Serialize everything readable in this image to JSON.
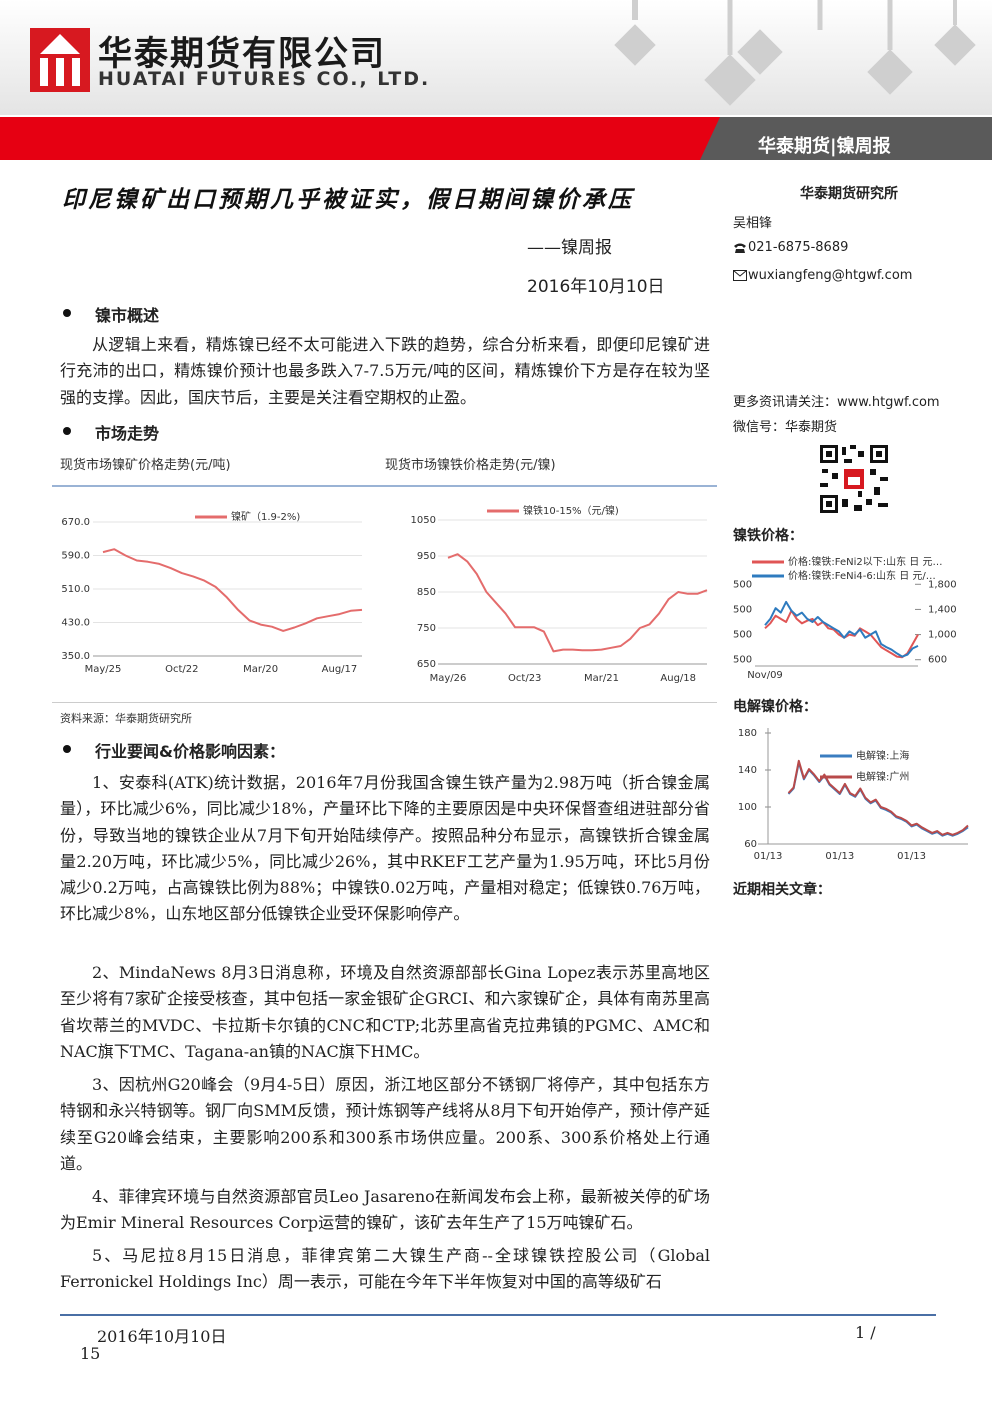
{
  "header": {
    "company_cn": "华泰期货有限公司",
    "company_en": "HUATAI FUTURES CO., LTD.",
    "report_tag": "华泰期货|镍周报"
  },
  "title": "印尼镍矿出口预期几乎被证实，假日期间镍价承压",
  "series_name": "——镍周报",
  "date": "2016年10月10日",
  "sections": [
    {
      "heading": "镍市概述",
      "paragraphs": [
        "从逻辑上来看，精炼镍已经不太可能进入下跌的趋势，综合分析来看，即便印尼镍矿进行充沛的出口，精炼镍价预计也最多跌入7-7.5万元/吨的区间，精炼镍价下方是存在较为坚强的支撑。因此，国庆节后，主要是关注看空期权的止盈。"
      ]
    },
    {
      "heading": "市场走势"
    },
    {
      "heading": "行业要闻&价格影响因素：",
      "paragraphs": [
        "1、安泰科(ATK)统计数据，2016年7月份我国含镍生铁产量为2.98万吨（折合镍金属量），环比减少6%，同比减少18%，产量环比下降的主要原因是中央环保督查组进驻部分省份，导致当地的镍铁企业从7月下旬开始陆续停产。按照品种分布显示，高镍铁折合镍金属量2.20万吨，环比减少5%，同比减少26%，其中RKEF工艺产量为1.95万吨，环比5月份减少0.2万吨，占高镍铁比例为88%；中镍铁0.02万吨，产量相对稳定；低镍铁0.76万吨，环比减少8%，山东地区部分低镍铁企业受环保影响停产。",
        "2、MindaNews 8月3日消息称，环境及自然资源部部长Gina Lopez表示苏里高地区至少将有7家矿企接受核查，其中包括一家金银矿企GRCI、和六家镍矿企，具体有南苏里高省坎蒂兰的MVDC、卡拉斯卡尔镇的CNC和CTP;北苏里高省克拉弗镇的PGMC、AMC和NAC旗下TMC、Tagana-an镇的NAC旗下HMC。",
        "3、因杭州G20峰会（9月4-5日）原因，浙江地区部分不锈钢厂将停产，其中包括东方特钢和永兴特钢等。钢厂向SMM反馈，预计炼钢等产线将从8月下旬开始停产，预计停产延续至G20峰会结束，主要影响200系和300系市场供应量。200系、300系价格处上行通道。",
        "4、菲律宾环境与自然资源部官员Leo Jasareno在新闻发布会上称，最新被关停的矿场为Emir Mineral Resources Corp运营的镍矿，该矿去年生产了15万吨镍矿石。",
        "5、马尼拉8月15日消息，菲律宾第二大镍生产商--全球镍铁控股公司（Global Ferronickel Holdings Inc）周一表示，可能在今年下半年恢复对中国的高等级矿石"
      ]
    }
  ],
  "source": "资料来源：华泰期货研究所",
  "sidebar": {
    "institute": "华泰期货研究所",
    "analyst": "吴相锋",
    "phone": "021-6875-8689",
    "email": "wuxiangfeng@htgwf.com",
    "more": "更多资讯请关注：www.htgwf.com",
    "wechat": "微信号：华泰期货",
    "related": "近期相关文章："
  },
  "chart_data": [
    {
      "type": "line",
      "title": "现货市场镍矿价格走势(元/吨)",
      "grid": true,
      "categories": [
        "May/25",
        null,
        null,
        null,
        null,
        null,
        null,
        "Oct/22",
        null,
        null,
        null,
        null,
        null,
        null,
        "Mar/20",
        null,
        null,
        null,
        null,
        null,
        null,
        "Aug/17",
        null,
        null
      ],
      "series": [
        {
          "name": "镍矿（1.9-2%)",
          "color": "#e46c6c",
          "values": [
            598,
            605,
            590,
            578,
            575,
            570,
            560,
            548,
            540,
            530,
            515,
            490,
            460,
            435,
            425,
            420,
            410,
            418,
            428,
            440,
            445,
            450,
            458,
            460
          ]
        }
      ],
      "ylim": [
        350,
        670
      ],
      "yticks": [
        {
          "value": 350,
          "label": "350.0"
        },
        {
          "value": 430,
          "label": "430.0"
        },
        {
          "value": 510,
          "label": "510.0"
        },
        {
          "value": 590,
          "label": "590.0"
        },
        {
          "value": 670,
          "label": "670.0"
        }
      ]
    },
    {
      "type": "line",
      "title": "现货市场镍铁价格走势(元/镍)",
      "grid": true,
      "categories": [
        "May/26",
        null,
        null,
        null,
        null,
        null,
        null,
        null,
        "Oct/23",
        null,
        null,
        null,
        null,
        null,
        null,
        null,
        "Mar/21",
        null,
        null,
        null,
        null,
        null,
        null,
        null,
        "Aug/18",
        null,
        null,
        null
      ],
      "series": [
        {
          "name": "镍铁10-15%（元/镍)",
          "color": "#e46c6c",
          "values": [
            945,
            955,
            935,
            900,
            850,
            820,
            790,
            752,
            752,
            752,
            740,
            685,
            690,
            690,
            688,
            688,
            690,
            695,
            700,
            720,
            750,
            760,
            790,
            830,
            850,
            845,
            845,
            855
          ]
        }
      ],
      "ylim": [
        650,
        1050
      ],
      "yticks": [
        650,
        750,
        850,
        950,
        1050
      ]
    },
    {
      "type": "line",
      "title": "镍铁价格：",
      "grid": false,
      "categories": [
        "Nov/09",
        null,
        null,
        null,
        null,
        null,
        null,
        null,
        null,
        null,
        null,
        null,
        null,
        null,
        null,
        null,
        null,
        null,
        null,
        null,
        null,
        null,
        null,
        null,
        null,
        null,
        null,
        null,
        null,
        null
      ],
      "series": [
        {
          "name": "价格:镍铁:FeNi2以下:山东 日 元…",
          "color": "#e05555",
          "values": [
            1100,
            1180,
            1300,
            1250,
            1200,
            1380,
            1250,
            1180,
            1220,
            1250,
            1150,
            1200,
            1100,
            1080,
            1000,
            950,
            1000,
            980,
            1100,
            1050,
            1000,
            900,
            800,
            750,
            700,
            650,
            640,
            700,
            850,
            1000
          ]
        },
        {
          "name": "价格:镍铁:FeNi4-6:山东 日 元/…",
          "color": "#2e7bbf",
          "values": [
            1150,
            1250,
            1420,
            1350,
            1520,
            1380,
            1300,
            1350,
            1250,
            1200,
            1280,
            1200,
            1150,
            1100,
            1050,
            950,
            1050,
            1000,
            1080,
            950,
            1000,
            1050,
            850,
            800,
            760,
            700,
            650,
            680,
            780,
            820
          ]
        }
      ],
      "ylim": [
        500,
        1900
      ],
      "yticks": [
        600,
        {
          "value": 1000,
          "label": "1,000"
        },
        {
          "value": 1400,
          "label": "1,400"
        },
        {
          "value": 1800,
          "label": "1,800"
        }
      ],
      "y_left_labels": [
        "500",
        "500",
        "500",
        "500"
      ]
    },
    {
      "type": "line",
      "title": "电解镍价格：",
      "grid": false,
      "categories": [
        "01/13",
        null,
        null,
        null,
        null,
        null,
        null,
        null,
        null,
        null,
        null,
        null,
        null,
        null,
        "01/13",
        null,
        null,
        null,
        null,
        null,
        null,
        null,
        null,
        null,
        null,
        null,
        null,
        null,
        "01/13",
        null,
        null,
        null,
        null,
        null,
        null,
        null,
        null,
        null,
        null,
        null
      ],
      "series": [
        {
          "name": "电解镍:上海",
          "color": "#3a7dc0",
          "values": [
            null,
            null,
            null,
            null,
            114,
            120,
            148,
            130,
            140,
            134,
            127,
            134,
            124,
            119,
            114,
            124,
            114,
            111,
            119,
            109,
            104,
            107,
            99,
            97,
            94,
            89,
            87,
            84,
            79,
            81,
            77,
            74,
            71,
            73,
            69,
            71,
            69,
            71,
            74,
            78
          ]
        },
        {
          "name": "电解镍:广州",
          "color": "#b84a4a",
          "values": [
            null,
            null,
            null,
            null,
            115,
            121,
            150,
            131,
            141,
            135,
            128,
            135,
            125,
            120,
            115,
            125,
            115,
            112,
            120,
            110,
            105,
            108,
            100,
            98,
            95,
            90,
            88,
            85,
            80,
            82,
            78,
            75,
            72,
            74,
            70,
            72,
            70,
            72,
            75,
            80
          ]
        }
      ],
      "ylim": [
        60,
        180
      ],
      "yticks": [
        60,
        100,
        140,
        180
      ]
    }
  ],
  "footer": {
    "date": "2016年10月10日",
    "page": "1 /",
    "total": "15"
  }
}
